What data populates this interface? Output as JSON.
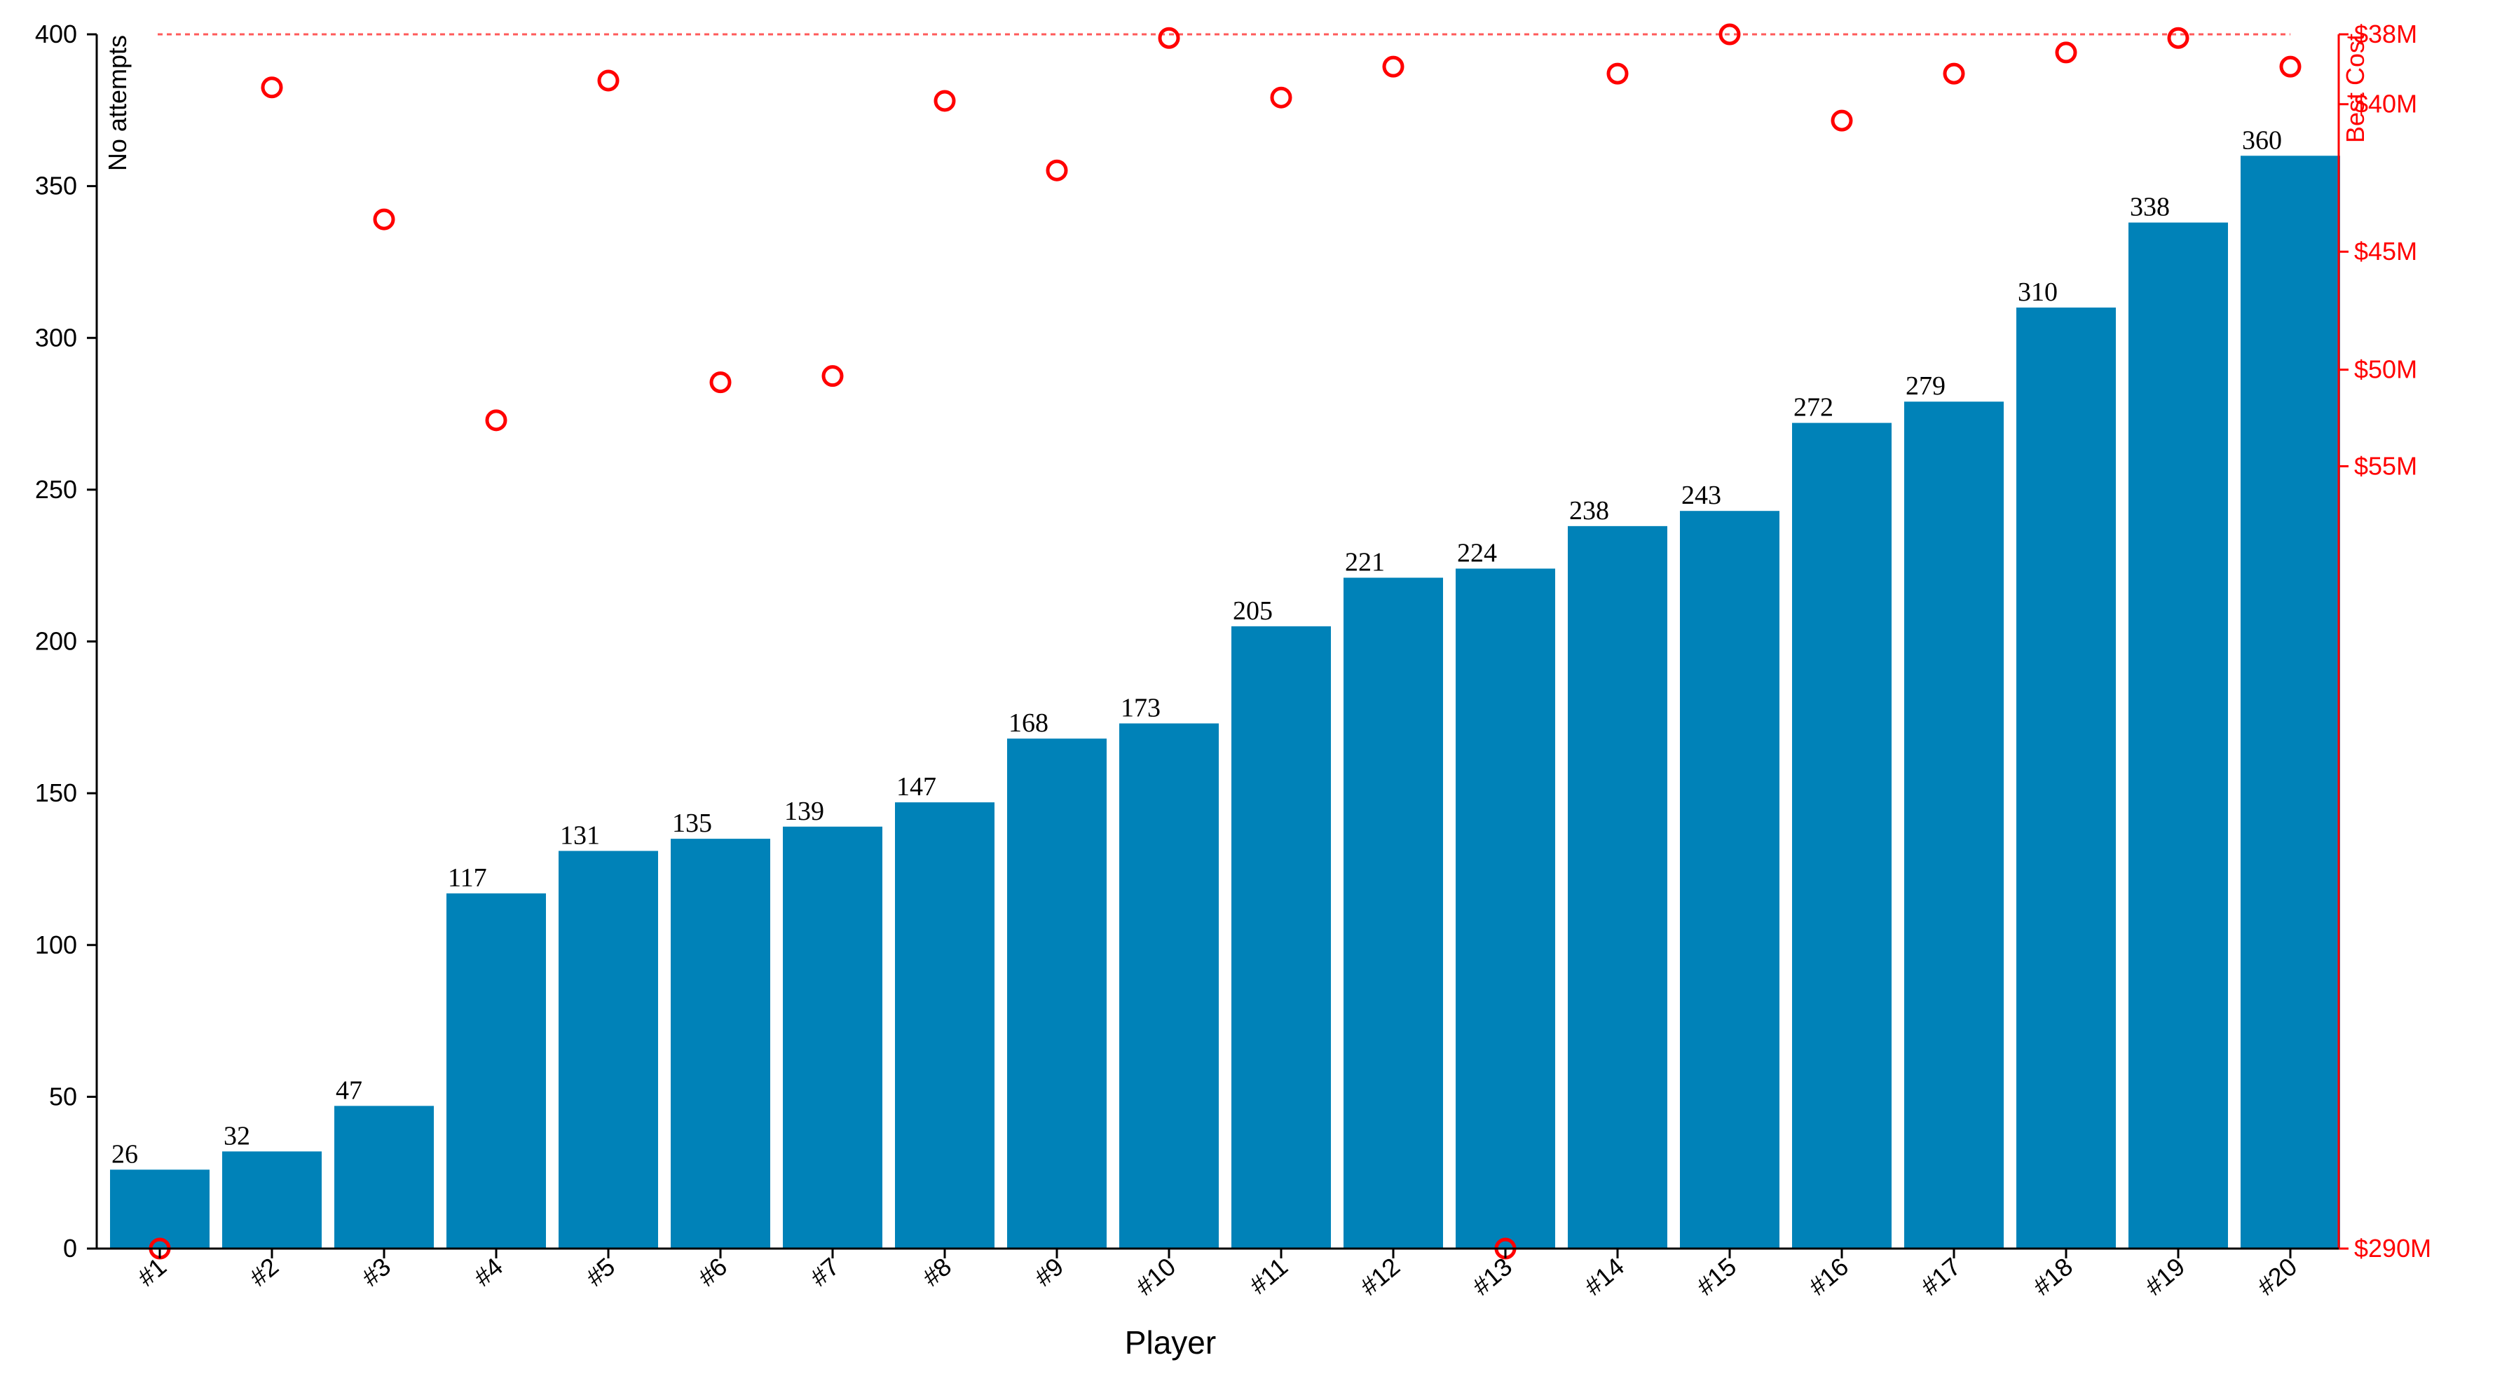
{
  "chart_data": {
    "type": "bar",
    "xlabel": "Player",
    "ylabel_left": "No attempts",
    "ylabel_right": "Best Cost",
    "categories": [
      "#1",
      "#2",
      "#3",
      "#4",
      "#5",
      "#6",
      "#7",
      "#8",
      "#9",
      "#10",
      "#11",
      "#12",
      "#13",
      "#14",
      "#15",
      "#16",
      "#17",
      "#18",
      "#19",
      "#20"
    ],
    "series": [
      {
        "axis": "left",
        "values": [
          26,
          32,
          47,
          117,
          131,
          135,
          139,
          147,
          168,
          173,
          205,
          221,
          224,
          238,
          243,
          272,
          279,
          310,
          338,
          360
        ]
      },
      {
        "axis": "right",
        "values": [
          290,
          39.5,
          43.8,
          52.5,
          39.3,
          50.6,
          50.3,
          39.9,
          42.1,
          38.1,
          39.8,
          38.9,
          290,
          39.1,
          38,
          40.5,
          39.1,
          38.5,
          38.1,
          38.9
        ]
      }
    ],
    "ylim_left": [
      0,
      400
    ],
    "yticks_left": [
      0,
      50,
      100,
      150,
      200,
      250,
      300,
      350,
      400
    ],
    "right_axis": {
      "scale": "reciprocal",
      "domain_millions": [
        290,
        38
      ],
      "ticks": [
        {
          "value": 38,
          "label": "$38M"
        },
        {
          "value": 40,
          "label": "$40M"
        },
        {
          "value": 45,
          "label": "$45M"
        },
        {
          "value": 50,
          "label": "$50M"
        },
        {
          "value": 55,
          "label": "$55M"
        },
        {
          "value": 290,
          "label": "$290M"
        }
      ]
    },
    "reference_line": {
      "axis": "right",
      "value": 38,
      "style": "dashed"
    },
    "data_labels": true,
    "grid": false,
    "colors": {
      "bar": "#0082b8",
      "marker": "#ff0000",
      "reference_line": "#ff5a5a",
      "right_axis": "#ff0000",
      "left_axis": "#000000"
    }
  }
}
